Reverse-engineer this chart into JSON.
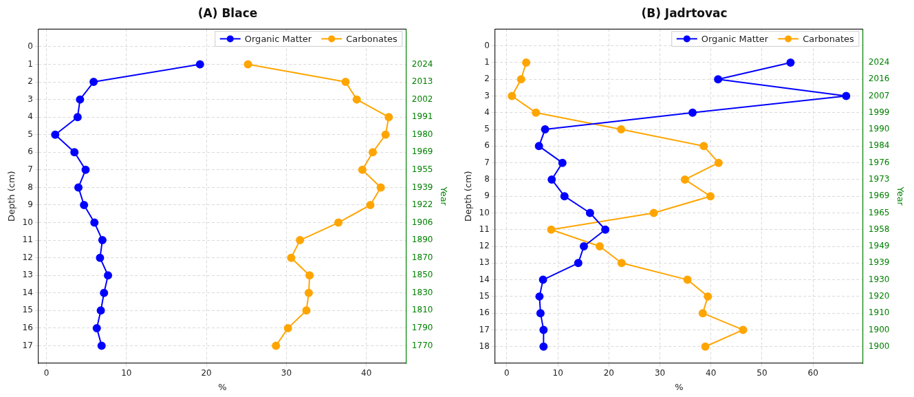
{
  "chart_data": [
    {
      "type": "line",
      "title": "(A) Blace",
      "xlabel": "%",
      "ylabel": "Depth (cm)",
      "y2label": "Year",
      "marker": "circle",
      "grid": true,
      "legend": "top right",
      "xlim": [
        -1,
        45
      ],
      "xticks": [
        0,
        10,
        20,
        30,
        40
      ],
      "ylim": [
        18,
        -1
      ],
      "yticks": [
        0,
        1,
        2,
        3,
        4,
        5,
        6,
        7,
        8,
        9,
        10,
        11,
        12,
        13,
        14,
        15,
        16,
        17
      ],
      "y2_categories": [
        null,
        "2024",
        "2013",
        "2002",
        "1991",
        "1980",
        "1969",
        "1955",
        "1939",
        "1922",
        "1906",
        "1890",
        "1870",
        "1850",
        "1830",
        "1810",
        "1790",
        "1770"
      ],
      "series": [
        {
          "name": "Organic Matter",
          "color": "#0000ff",
          "x": [
            19.2,
            5.9,
            4.2,
            3.9,
            1.1,
            3.5,
            4.9,
            4.0,
            4.7,
            6.0,
            7.0,
            6.7,
            7.7,
            7.2,
            6.8,
            6.3,
            6.9
          ],
          "values": [
            1,
            2,
            3,
            4,
            5,
            6,
            7,
            8,
            9,
            10,
            11,
            12,
            13,
            14,
            15,
            16,
            17
          ]
        },
        {
          "name": "Carbonates",
          "color": "#ffa500",
          "x": [
            25.2,
            37.4,
            38.8,
            42.8,
            42.4,
            40.8,
            39.5,
            41.8,
            40.5,
            36.5,
            31.7,
            30.6,
            32.9,
            32.8,
            32.5,
            30.2,
            28.7
          ],
          "values": [
            1,
            2,
            3,
            4,
            5,
            6,
            7,
            8,
            9,
            10,
            11,
            12,
            13,
            14,
            15,
            16,
            17
          ]
        }
      ]
    },
    {
      "type": "line",
      "title": "(B) Jadrtovac",
      "xlabel": "%",
      "ylabel": "Depth (cm)",
      "y2label": "Year",
      "marker": "circle",
      "grid": true,
      "legend": "top right",
      "xlim": [
        -2.3,
        69.8
      ],
      "xticks": [
        0,
        10,
        20,
        30,
        40,
        50,
        60
      ],
      "ylim": [
        19,
        -1
      ],
      "yticks": [
        0,
        1,
        2,
        3,
        4,
        5,
        6,
        7,
        8,
        9,
        10,
        11,
        12,
        13,
        14,
        15,
        16,
        17,
        18
      ],
      "y2_categories": [
        null,
        "2024",
        "2016",
        "2007",
        "1999",
        "1990",
        "1984",
        "1976",
        "1973",
        "1969",
        "1965",
        "1958",
        "1949",
        "1939",
        "1930",
        "1920",
        "1910",
        "1900",
        "1900"
      ],
      "series": [
        {
          "name": "Organic Matter",
          "color": "#0000ff",
          "x": [
            55.6,
            41.4,
            66.5,
            36.4,
            7.5,
            6.3,
            10.9,
            8.8,
            11.3,
            16.3,
            19.3,
            15.1,
            14.0,
            7.1,
            6.4,
            6.6,
            7.2,
            7.2
          ],
          "values": [
            1,
            2,
            3,
            4,
            5,
            6,
            7,
            8,
            9,
            10,
            11,
            12,
            13,
            14,
            15,
            16,
            17,
            18
          ]
        },
        {
          "name": "Carbonates",
          "color": "#ffa500",
          "x": [
            3.8,
            2.8,
            1.0,
            5.7,
            22.4,
            38.6,
            41.5,
            34.9,
            39.9,
            28.8,
            8.7,
            18.2,
            22.5,
            35.4,
            39.4,
            38.4,
            46.3,
            38.9
          ],
          "values": [
            1,
            2,
            3,
            4,
            5,
            6,
            7,
            8,
            9,
            10,
            11,
            12,
            13,
            14,
            15,
            16,
            17,
            18
          ]
        }
      ]
    }
  ]
}
